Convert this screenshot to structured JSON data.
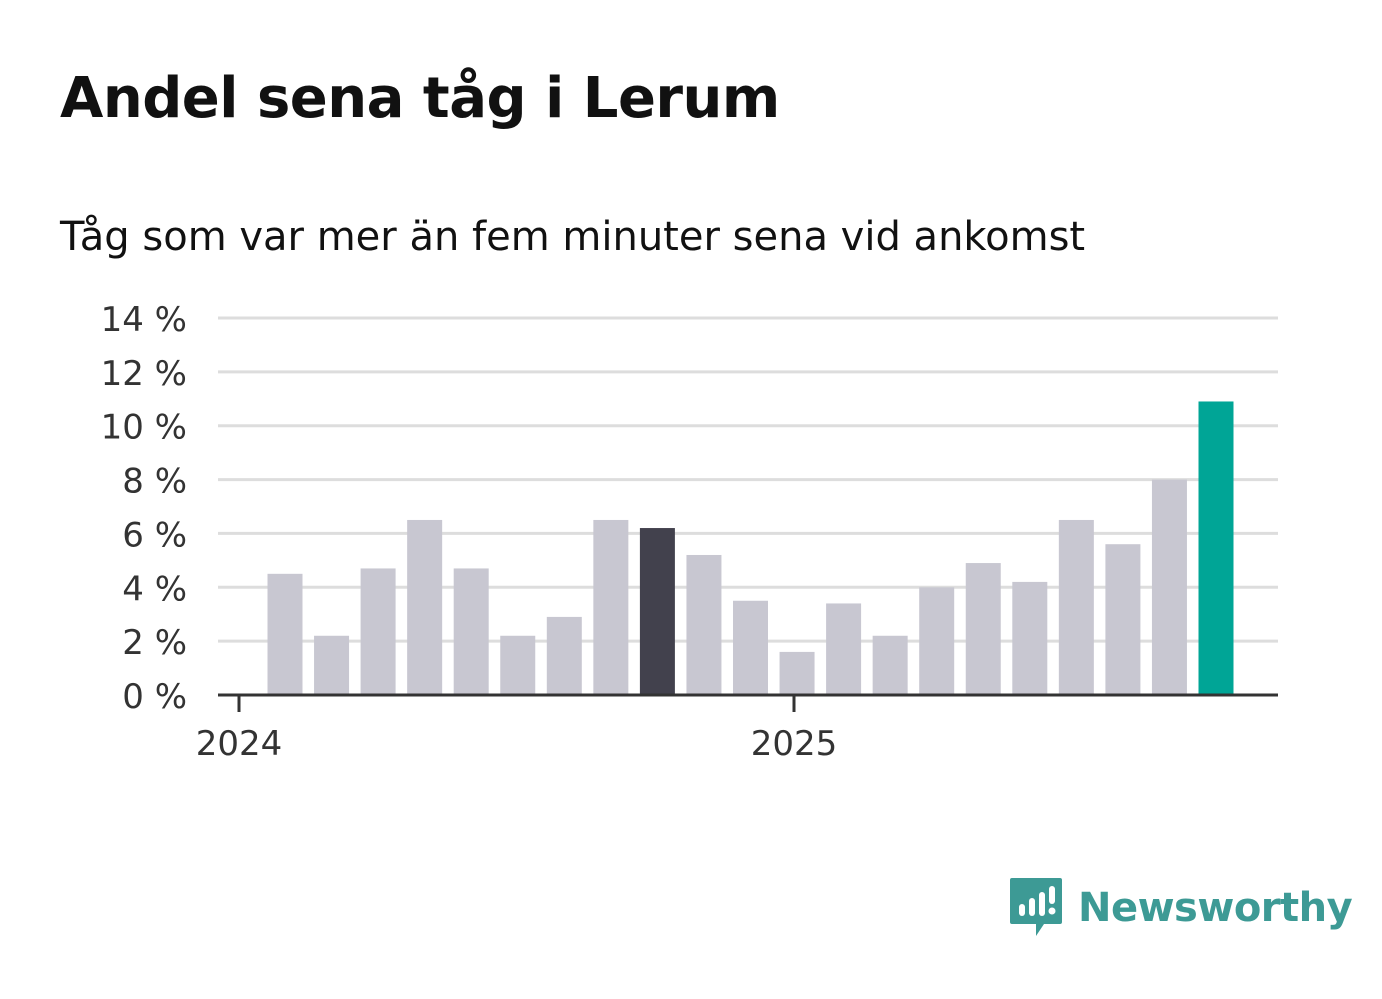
{
  "header": {
    "title": "Andel sena tåg i Lerum",
    "subtitle": "Tåg som var mer än fem minuter sena vid ankomst"
  },
  "brand": {
    "name": "Newsworthy",
    "color": "#3d9a95"
  },
  "colors": {
    "bar_default": "#c8c7d1",
    "bar_highlight_prev": "#42414d",
    "bar_latest": "#00a596",
    "grid": "#dddddd",
    "axis": "#333333",
    "text": "#333333"
  },
  "chart_data": {
    "type": "bar",
    "title": "Andel sena tåg i Lerum",
    "subtitle": "Tåg som var mer än fem minuter sena vid ankomst",
    "xlabel": "",
    "ylabel": "",
    "unit": "%",
    "ylim": [
      0,
      14
    ],
    "yticks": [
      0,
      2,
      4,
      6,
      8,
      10,
      12,
      14
    ],
    "ytick_labels": [
      "0 %",
      "2 %",
      "4 %",
      "6 %",
      "8 %",
      "10 %",
      "12 %",
      "14 %"
    ],
    "x_tick_labels": [
      "2024",
      "2025"
    ],
    "grid": true,
    "series": [
      {
        "name": "Andel sena tåg",
        "values": [
          4.5,
          2.2,
          4.7,
          6.5,
          4.7,
          2.2,
          2.9,
          6.5,
          6.2,
          5.2,
          3.5,
          1.6,
          3.4,
          2.2,
          4.0,
          4.9,
          4.2,
          6.5,
          5.6,
          8.0,
          10.9
        ]
      }
    ],
    "categories": [
      "2024-01",
      "2024-02",
      "2024-03",
      "2024-04",
      "2024-05",
      "2024-06",
      "2024-07",
      "2024-08",
      "2024-09",
      "2024-10",
      "2024-11",
      "2024-12",
      "2025-01",
      "2025-02",
      "2025-03",
      "2025-04",
      "2025-05",
      "2025-06",
      "2025-07",
      "2025-08",
      "2025-09"
    ],
    "highlight": {
      "previous_year_same_month_index": 8,
      "latest_index": 20
    }
  }
}
